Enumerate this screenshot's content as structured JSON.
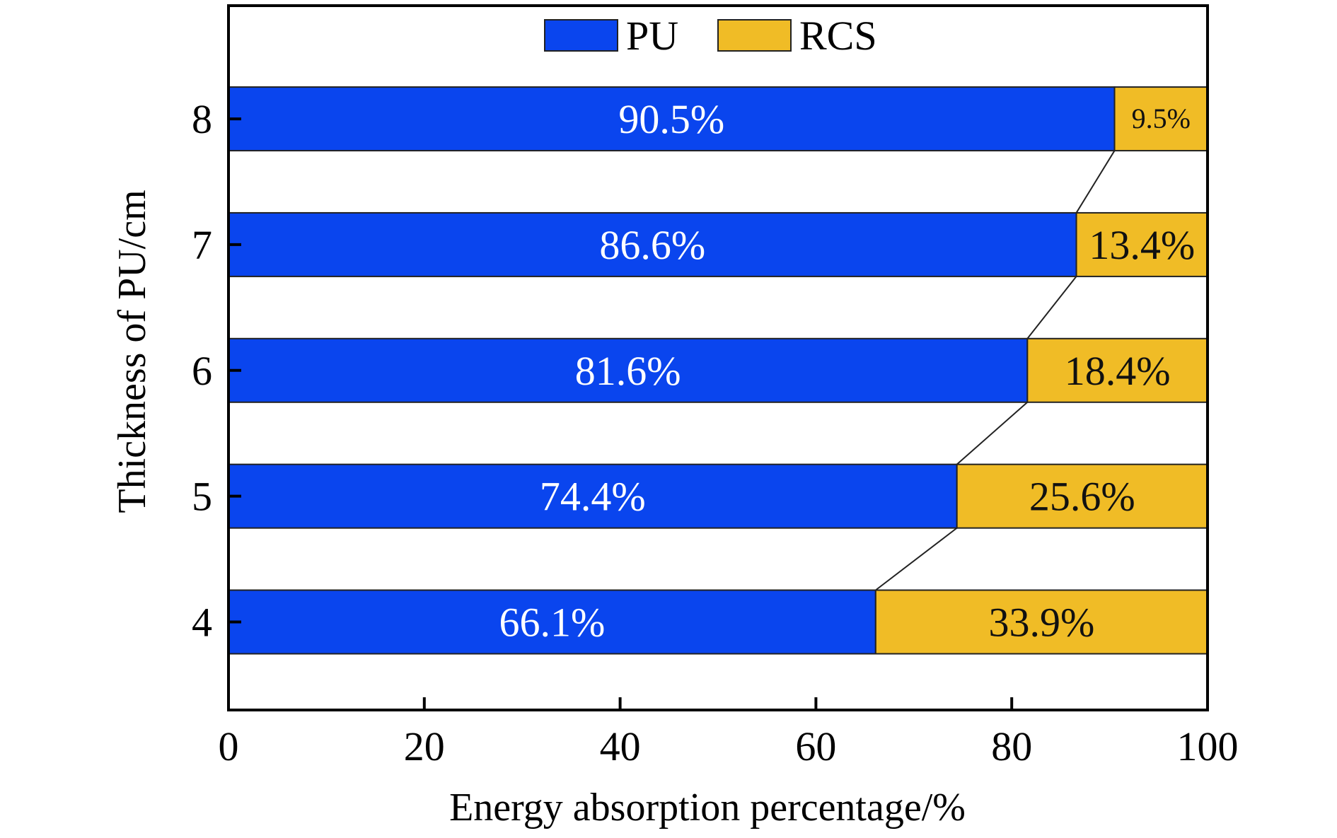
{
  "chart_data": {
    "type": "bar",
    "orientation": "horizontal",
    "stacked": true,
    "categories": [
      "4",
      "5",
      "6",
      "7",
      "8"
    ],
    "series": [
      {
        "name": "PU",
        "color": "#0a45ee",
        "values": [
          66.1,
          74.4,
          81.6,
          86.6,
          90.5
        ],
        "labels": [
          "66.1%",
          "74.4%",
          "81.6%",
          "86.6%",
          "90.5%"
        ]
      },
      {
        "name": "RCS",
        "color": "#f0bc26",
        "values": [
          33.9,
          25.6,
          18.4,
          13.4,
          9.5
        ],
        "labels": [
          "33.9%",
          "25.6%",
          "18.4%",
          "13.4%",
          "9.5%"
        ]
      }
    ],
    "title": "",
    "xlabel": "Energy absorption percentage/%",
    "ylabel": "Thickness of PU/cm",
    "xlim": [
      0,
      100
    ],
    "xticks": [
      0,
      20,
      40,
      60,
      80,
      100
    ],
    "ylim": [
      3.3,
      8.9
    ],
    "grid": false,
    "legend": "top-center",
    "connector_lines": true
  }
}
